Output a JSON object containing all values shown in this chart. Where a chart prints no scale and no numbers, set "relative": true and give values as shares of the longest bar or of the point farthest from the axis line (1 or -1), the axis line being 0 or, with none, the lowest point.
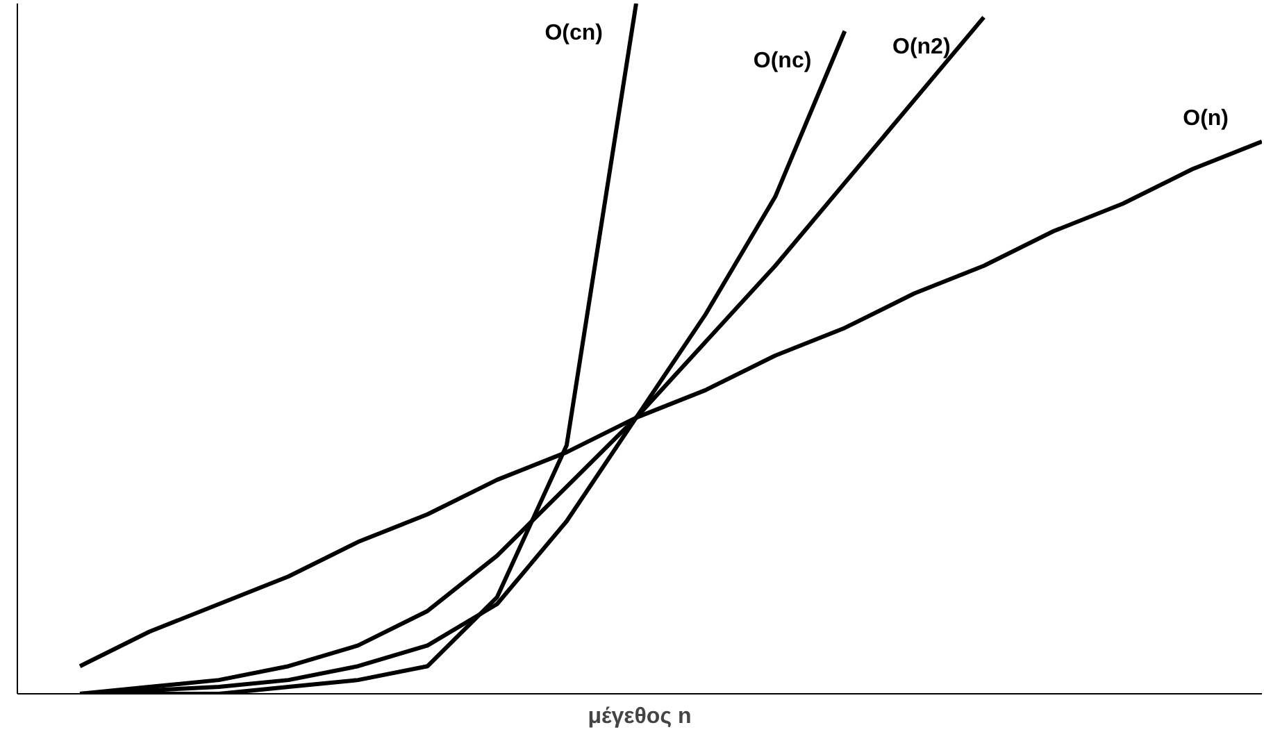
{
  "chart_data": {
    "type": "line",
    "relative": true,
    "xlabel": "μέγεθος n",
    "marker": "none",
    "line_style": "solid",
    "categories": [
      null,
      null,
      null,
      null,
      null,
      null,
      null,
      null,
      null,
      null,
      null,
      null,
      null,
      null,
      null,
      null,
      null,
      null
    ],
    "series": [
      {
        "name": "O(cn)",
        "color": "#000000",
        "values": [
          0,
          0,
          0,
          0.01,
          0.02,
          0.04,
          0.14,
          0.36,
          1,
          null,
          null,
          null,
          null,
          null,
          null,
          null,
          null,
          null
        ]
      },
      {
        "name": "O(nc)",
        "color": "#000000",
        "values": [
          0,
          0.005,
          0.01,
          0.02,
          0.04,
          0.07,
          0.13,
          0.25,
          0.4,
          0.55,
          0.72,
          0.96,
          null,
          null,
          null,
          null,
          null,
          null
        ]
      },
      {
        "name": "O(n2)",
        "color": "#000000",
        "values": [
          0,
          0.01,
          0.02,
          0.04,
          0.07,
          0.12,
          0.2,
          0.3,
          0.4,
          0.51,
          0.62,
          0.74,
          0.86,
          0.98,
          null,
          null,
          null,
          null
        ]
      },
      {
        "name": "O(n)",
        "color": "#000000",
        "values": [
          0.04,
          0.09,
          0.13,
          0.17,
          0.22,
          0.26,
          0.31,
          0.35,
          0.4,
          0.44,
          0.49,
          0.53,
          0.58,
          0.62,
          0.67,
          0.71,
          0.76,
          0.8
        ]
      }
    ]
  }
}
